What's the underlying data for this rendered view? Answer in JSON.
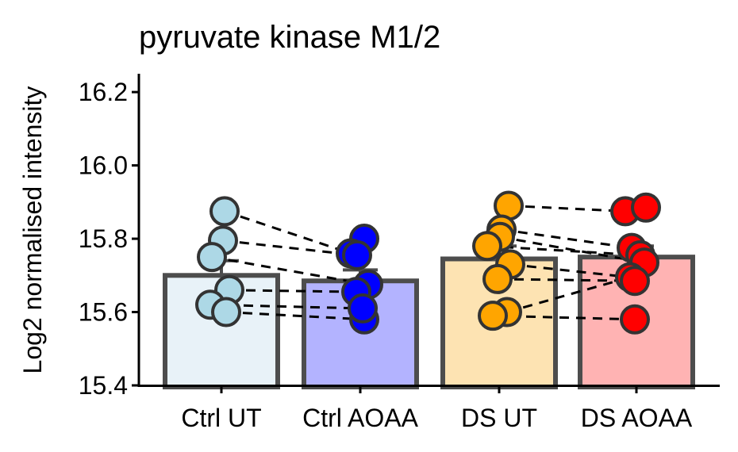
{
  "chart_data": {
    "type": "bar",
    "title": "pyruvate kinase M1/2",
    "xlabel": "",
    "ylabel": "Log2 normalised intensity",
    "ylim": [
      15.4,
      16.25
    ],
    "yticks": [
      "15.4",
      "15.6",
      "15.8",
      "16.0",
      "16.2"
    ],
    "categories": [
      "Ctrl UT",
      "Ctrl AOAA",
      "DS UT",
      "DS AOAA"
    ],
    "values": [
      15.7,
      15.685,
      15.745,
      15.75
    ],
    "error": [
      0.04,
      0.03,
      0.035,
      0.03
    ],
    "bar_fill_colors": [
      "#e8f2f8",
      "#b3b3ff",
      "#fde3b2",
      "#ffb3b3"
    ],
    "point_colors": [
      "#add8e6",
      "#0000ff",
      "#ffa500",
      "#ff0000"
    ],
    "grid": false,
    "legend": "none",
    "points": [
      [
        {
          "x": 0.04,
          "y": 15.875
        },
        {
          "x": 0.02,
          "y": 15.795
        },
        {
          "x": -0.12,
          "y": 15.75
        },
        {
          "x": 0.1,
          "y": 15.66
        },
        {
          "x": -0.14,
          "y": 15.62
        },
        {
          "x": 0.06,
          "y": 15.6
        }
      ],
      [
        {
          "x": 0.05,
          "y": 15.8
        },
        {
          "x": -0.12,
          "y": 15.76
        },
        {
          "x": -0.04,
          "y": 15.755
        },
        {
          "x": 0.1,
          "y": 15.675
        },
        {
          "x": -0.05,
          "y": 15.655
        },
        {
          "x": 0.05,
          "y": 15.58
        },
        {
          "x": 0.03,
          "y": 15.61
        }
      ],
      [
        {
          "x": 0.12,
          "y": 15.89
        },
        {
          "x": 0.03,
          "y": 15.825
        },
        {
          "x": 0.01,
          "y": 15.805
        },
        {
          "x": -0.15,
          "y": 15.78
        },
        {
          "x": 0.14,
          "y": 15.73
        },
        {
          "x": -0.02,
          "y": 15.69
        },
        {
          "x": 0.1,
          "y": 15.6
        },
        {
          "x": -0.08,
          "y": 15.59
        }
      ],
      [
        {
          "x": -0.14,
          "y": 15.875
        },
        {
          "x": 0.12,
          "y": 15.885
        },
        {
          "x": -0.06,
          "y": 15.775
        },
        {
          "x": 0.05,
          "y": 15.755
        },
        {
          "x": 0.1,
          "y": 15.735
        },
        {
          "x": -0.08,
          "y": 15.695
        },
        {
          "x": -0.02,
          "y": 15.685
        },
        {
          "x": -0.02,
          "y": 15.58
        }
      ]
    ],
    "pairs": [
      [
        0,
        0,
        1,
        1
      ],
      [
        0,
        1,
        1,
        2
      ],
      [
        0,
        3,
        1,
        4
      ],
      [
        0,
        4,
        1,
        6
      ],
      [
        0,
        5,
        1,
        5
      ],
      [
        0,
        2,
        1,
        3
      ],
      [
        2,
        0,
        3,
        0
      ],
      [
        2,
        1,
        3,
        2
      ],
      [
        2,
        2,
        3,
        4
      ],
      [
        2,
        3,
        3,
        3
      ],
      [
        2,
        4,
        3,
        5
      ],
      [
        2,
        5,
        3,
        6
      ],
      [
        2,
        6,
        3,
        5
      ],
      [
        2,
        7,
        3,
        7
      ]
    ]
  }
}
